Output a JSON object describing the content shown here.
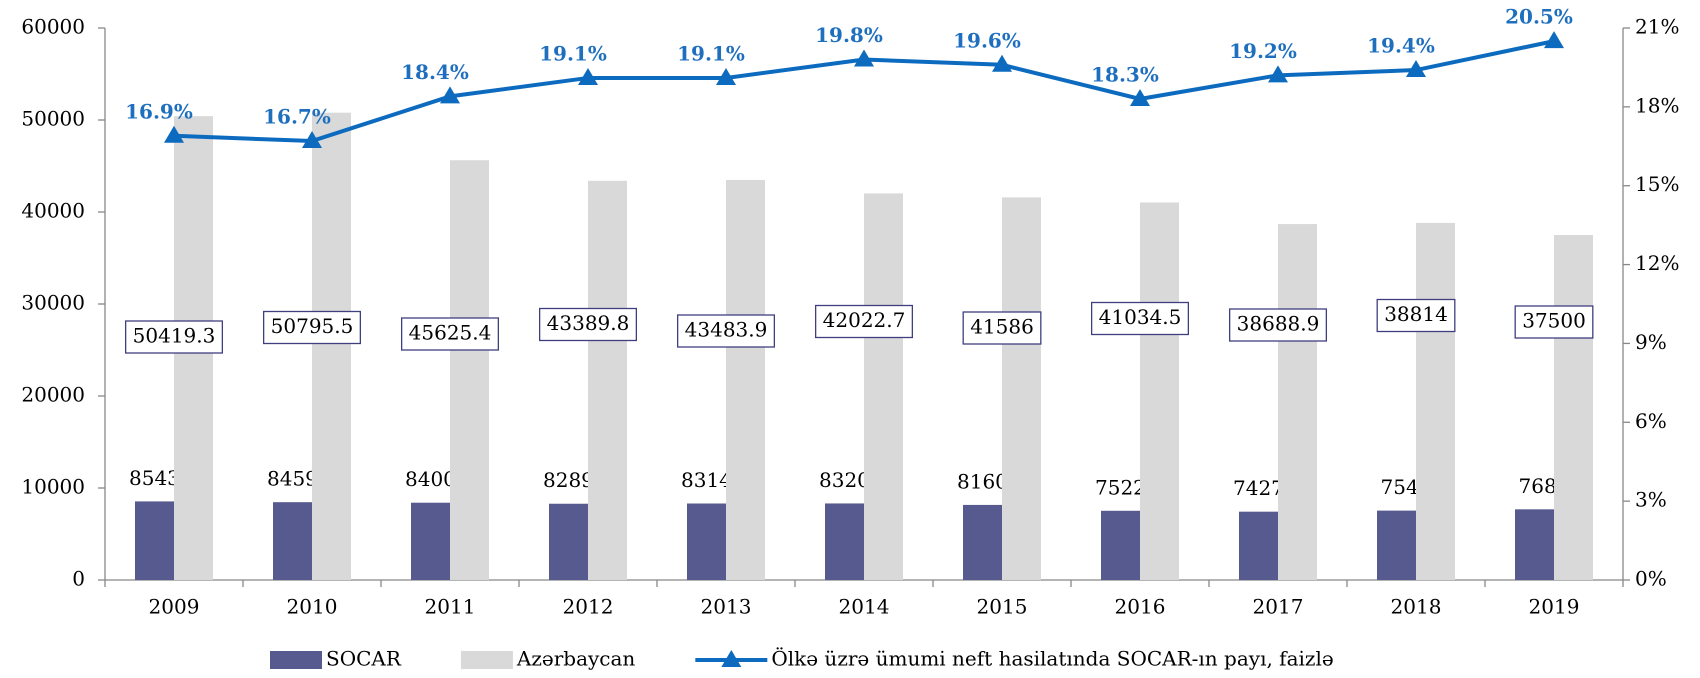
{
  "chart_data": {
    "type": "bar_line",
    "categories": [
      "2009",
      "2010",
      "2011",
      "2012",
      "2013",
      "2014",
      "2015",
      "2016",
      "2017",
      "2018",
      "2019"
    ],
    "series": [
      {
        "name": "SOCAR",
        "type": "bar",
        "color": "#575a8f",
        "values": [
          8543.3,
          8459.7,
          8400.9,
          8289.8,
          8314.9,
          8320.4,
          8160.5,
          7522.4,
          7427.1,
          7542,
          7683
        ]
      },
      {
        "name": "Azərbaycan",
        "type": "bar",
        "color": "#d9d9d9",
        "values": [
          50419.3,
          50795.5,
          45625.4,
          43389.8,
          43483.9,
          42022.7,
          41586,
          41034.5,
          38688.9,
          38814,
          37500
        ]
      },
      {
        "name": "Ölkə üzrə ümumi neft hasilatında SOCAR-ın payı, faizlə",
        "type": "line",
        "axis": "y2",
        "color": "#0d6bbf",
        "values": [
          16.9,
          16.7,
          18.4,
          19.1,
          19.1,
          19.8,
          19.6,
          18.3,
          19.2,
          19.4,
          20.5
        ],
        "value_labels": [
          "16.9%",
          "16.7%",
          "18.4%",
          "19.1%",
          "19.1%",
          "19.8%",
          "19.6%",
          "18.3%",
          "19.2%",
          "19.4%",
          "20.5%"
        ]
      }
    ],
    "ylim": [
      0,
      60000
    ],
    "yticks": [
      0,
      10000,
      20000,
      30000,
      40000,
      50000,
      60000
    ],
    "y2lim": [
      0,
      21
    ],
    "y2ticks": [
      {
        "value": 0,
        "label": "0%"
      },
      {
        "value": 3,
        "label": "3%"
      },
      {
        "value": 6,
        "label": "6%"
      },
      {
        "value": 9,
        "label": "9%"
      },
      {
        "value": 12,
        "label": "12%"
      },
      {
        "value": 15,
        "label": "15%"
      },
      {
        "value": 18,
        "label": "18%"
      },
      {
        "value": 21,
        "label": "21%"
      }
    ],
    "grid": false
  }
}
